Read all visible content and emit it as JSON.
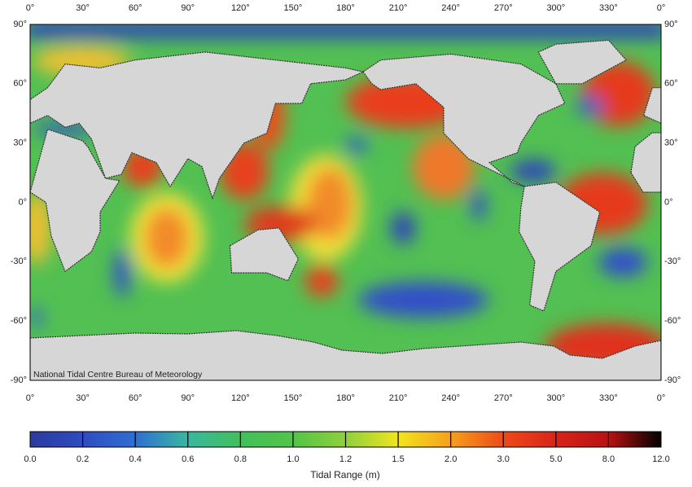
{
  "map": {
    "lon_labels": [
      "0°",
      "30°",
      "60°",
      "90°",
      "120°",
      "150°",
      "180°",
      "210°",
      "240°",
      "270°",
      "300°",
      "330°",
      "0°"
    ],
    "lat_labels": [
      "90°",
      "60°",
      "30°",
      "0°",
      "-30°",
      "-60°",
      "-90°"
    ],
    "credit": "National Tidal Centre   Bureau of Meteorology"
  },
  "colorbar": {
    "labels": [
      "0.0",
      "0.2",
      "0.4",
      "0.6",
      "0.8",
      "1.0",
      "1.2",
      "1.5",
      "2.0",
      "3.0",
      "5.0",
      "8.0",
      "12.0"
    ],
    "title": "Tidal Range (m)"
  }
}
